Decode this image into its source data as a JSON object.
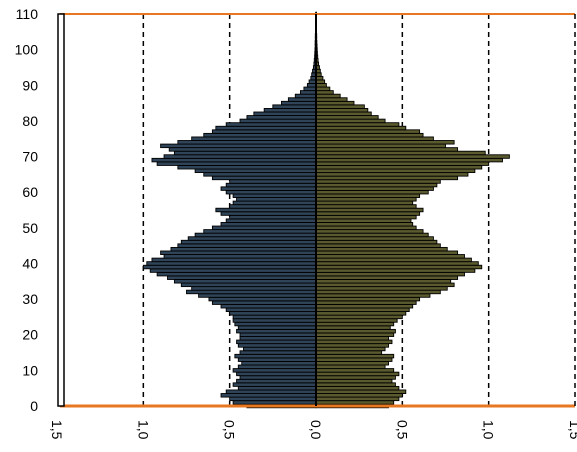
{
  "chart_data": {
    "type": "bar",
    "orientation": "horizontal",
    "layout": "population-pyramid",
    "title": "",
    "xlabel": "",
    "ylabel": "",
    "ylim": [
      0,
      110
    ],
    "xlim": [
      -1.5,
      1.5
    ],
    "y_ticks": [
      "0",
      "10",
      "20",
      "30",
      "40",
      "50",
      "60",
      "70",
      "80",
      "90",
      "100",
      "110"
    ],
    "x_ticks": [
      "1,5",
      "1,0",
      "0,5",
      "0,0",
      "0,5",
      "1,0",
      "1,5"
    ],
    "grid": "vertical dashed",
    "legend": "none",
    "colors": {
      "left_fill": "#2f4458",
      "right_fill": "#5a5a2e",
      "bar_outline": "#000000",
      "frame_top_bottom": "#e87722"
    },
    "ages": [
      0,
      1,
      2,
      3,
      4,
      5,
      6,
      7,
      8,
      9,
      10,
      11,
      12,
      13,
      14,
      15,
      16,
      17,
      18,
      19,
      20,
      21,
      22,
      23,
      24,
      25,
      26,
      27,
      28,
      29,
      30,
      31,
      32,
      33,
      34,
      35,
      36,
      37,
      38,
      39,
      40,
      41,
      42,
      43,
      44,
      45,
      46,
      47,
      48,
      49,
      50,
      51,
      52,
      53,
      54,
      55,
      56,
      57,
      58,
      59,
      60,
      61,
      62,
      63,
      64,
      65,
      66,
      67,
      68,
      69,
      70,
      71,
      72,
      73,
      74,
      75,
      76,
      77,
      78,
      79,
      80,
      81,
      82,
      83,
      84,
      85,
      86,
      87,
      88,
      89,
      90,
      91,
      92,
      93,
      94,
      95,
      96,
      97,
      98,
      99,
      100,
      101,
      102,
      103,
      104,
      105,
      106,
      107,
      108,
      109,
      110
    ],
    "series": [
      {
        "side": "left",
        "values": [
          0.4,
          0.48,
          0.5,
          0.55,
          0.52,
          0.45,
          0.48,
          0.46,
          0.44,
          0.46,
          0.48,
          0.45,
          0.43,
          0.45,
          0.47,
          0.44,
          0.42,
          0.45,
          0.46,
          0.44,
          0.44,
          0.46,
          0.45,
          0.47,
          0.48,
          0.48,
          0.5,
          0.52,
          0.55,
          0.6,
          0.62,
          0.68,
          0.75,
          0.72,
          0.78,
          0.82,
          0.86,
          0.92,
          0.96,
          1.0,
          0.98,
          0.95,
          0.88,
          0.9,
          0.84,
          0.8,
          0.78,
          0.74,
          0.7,
          0.65,
          0.6,
          0.55,
          0.52,
          0.5,
          0.55,
          0.58,
          0.5,
          0.48,
          0.46,
          0.48,
          0.52,
          0.55,
          0.52,
          0.5,
          0.6,
          0.65,
          0.7,
          0.8,
          0.92,
          0.95,
          0.88,
          0.82,
          0.85,
          0.9,
          0.8,
          0.72,
          0.65,
          0.6,
          0.58,
          0.52,
          0.44,
          0.4,
          0.36,
          0.3,
          0.25,
          0.2,
          0.16,
          0.12,
          0.09,
          0.07,
          0.05,
          0.04,
          0.03,
          0.025,
          0.02,
          0.015,
          0.012,
          0.01,
          0.008,
          0.007,
          0.006,
          0.005,
          0.005,
          0.004,
          0.004,
          0.003,
          0.003,
          0.003,
          0.002,
          0.002,
          0.002
        ]
      },
      {
        "side": "right",
        "values": [
          0.42,
          0.45,
          0.48,
          0.5,
          0.52,
          0.48,
          0.46,
          0.44,
          0.46,
          0.48,
          0.45,
          0.4,
          0.42,
          0.44,
          0.45,
          0.38,
          0.4,
          0.42,
          0.44,
          0.42,
          0.45,
          0.46,
          0.43,
          0.45,
          0.47,
          0.5,
          0.52,
          0.54,
          0.56,
          0.58,
          0.6,
          0.66,
          0.72,
          0.76,
          0.8,
          0.78,
          0.82,
          0.86,
          0.92,
          0.96,
          0.94,
          0.9,
          0.86,
          0.82,
          0.76,
          0.72,
          0.7,
          0.68,
          0.65,
          0.62,
          0.58,
          0.56,
          0.55,
          0.58,
          0.6,
          0.62,
          0.58,
          0.56,
          0.58,
          0.6,
          0.65,
          0.68,
          0.7,
          0.72,
          0.82,
          0.88,
          0.92,
          0.96,
          1.0,
          1.08,
          1.12,
          0.98,
          0.82,
          0.75,
          0.8,
          0.68,
          0.62,
          0.6,
          0.52,
          0.48,
          0.4,
          0.36,
          0.32,
          0.3,
          0.28,
          0.22,
          0.18,
          0.14,
          0.1,
          0.08,
          0.06,
          0.05,
          0.04,
          0.03,
          0.025,
          0.02,
          0.015,
          0.012,
          0.01,
          0.008,
          0.007,
          0.006,
          0.005,
          0.004,
          0.004,
          0.003,
          0.003,
          0.003,
          0.002,
          0.002,
          0.002
        ]
      }
    ]
  }
}
